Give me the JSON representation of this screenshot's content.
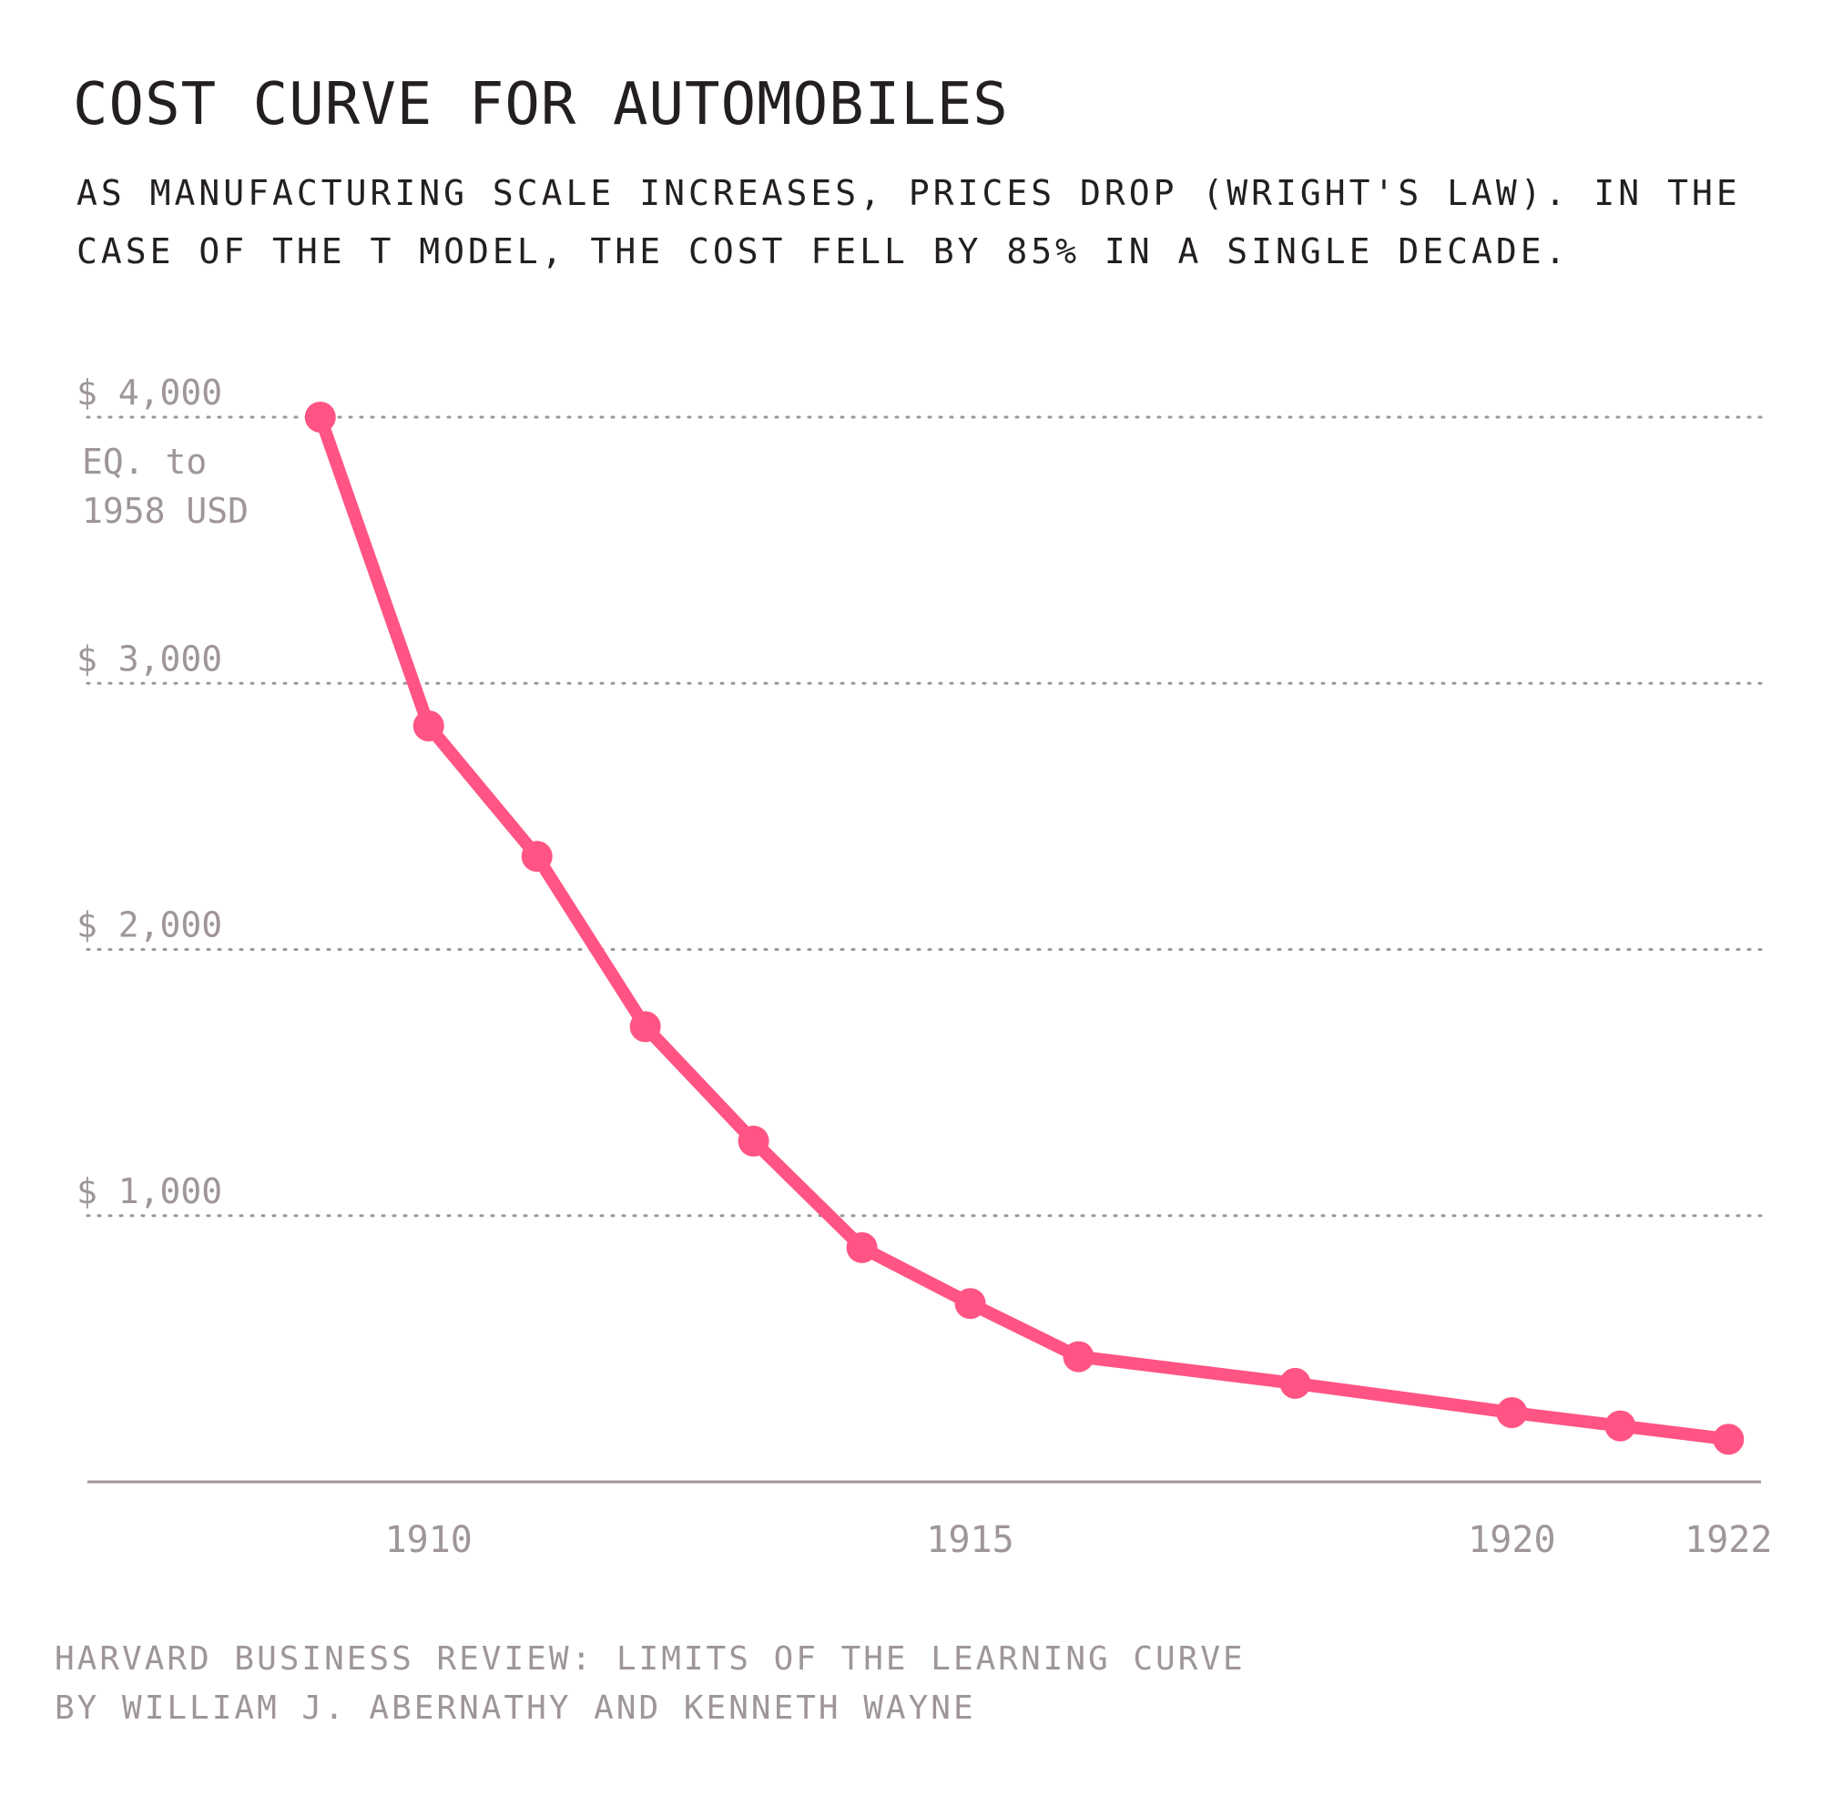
{
  "title": "COST CURVE FOR AUTOMOBILES",
  "subtitle_lines": [
    "AS MANUFACTURING SCALE INCREASES, PRICES DROP (WRIGHT'S LAW). IN THE",
    "CASE OF THE T MODEL, THE COST FELL BY 85% IN A SINGLE DECADE."
  ],
  "source_lines": [
    "HARVARD BUSINESS REVIEW: LIMITS OF THE LEARNING CURVE",
    "BY WILLIAM J. ABERNATHY AND KENNETH WAYNE"
  ],
  "colors": {
    "line": "#ff5484",
    "text": "#231f20",
    "muted": "#9e9698"
  },
  "chart_data": {
    "type": "line",
    "title": "COST CURVE FOR AUTOMOBILES",
    "ylabel": "EQ. to 1958 USD",
    "y_ticks": [
      {
        "value": 1000,
        "label": "$ 1,000"
      },
      {
        "value": 2000,
        "label": "$ 2,000"
      },
      {
        "value": 3000,
        "label": "$ 3,000"
      },
      {
        "value": 4000,
        "label": "$ 4,000"
      }
    ],
    "x_ticks": [
      {
        "value": 1910,
        "label": "1910"
      },
      {
        "value": 1915,
        "label": "1915"
      },
      {
        "value": 1920,
        "label": "1920"
      },
      {
        "value": 1922,
        "label": "1922"
      }
    ],
    "ylim": [
      0,
      4000
    ],
    "xlim": [
      1906.85,
      1922.3
    ],
    "grid": true,
    "series": [
      {
        "x": [
          1909,
          1910,
          1911,
          1912,
          1913,
          1914,
          1915,
          1916,
          1918,
          1920,
          1921,
          1922
        ],
        "y": [
          4000,
          2840,
          2350,
          1710,
          1280,
          880,
          670,
          470,
          370,
          260,
          210,
          160
        ]
      }
    ]
  }
}
